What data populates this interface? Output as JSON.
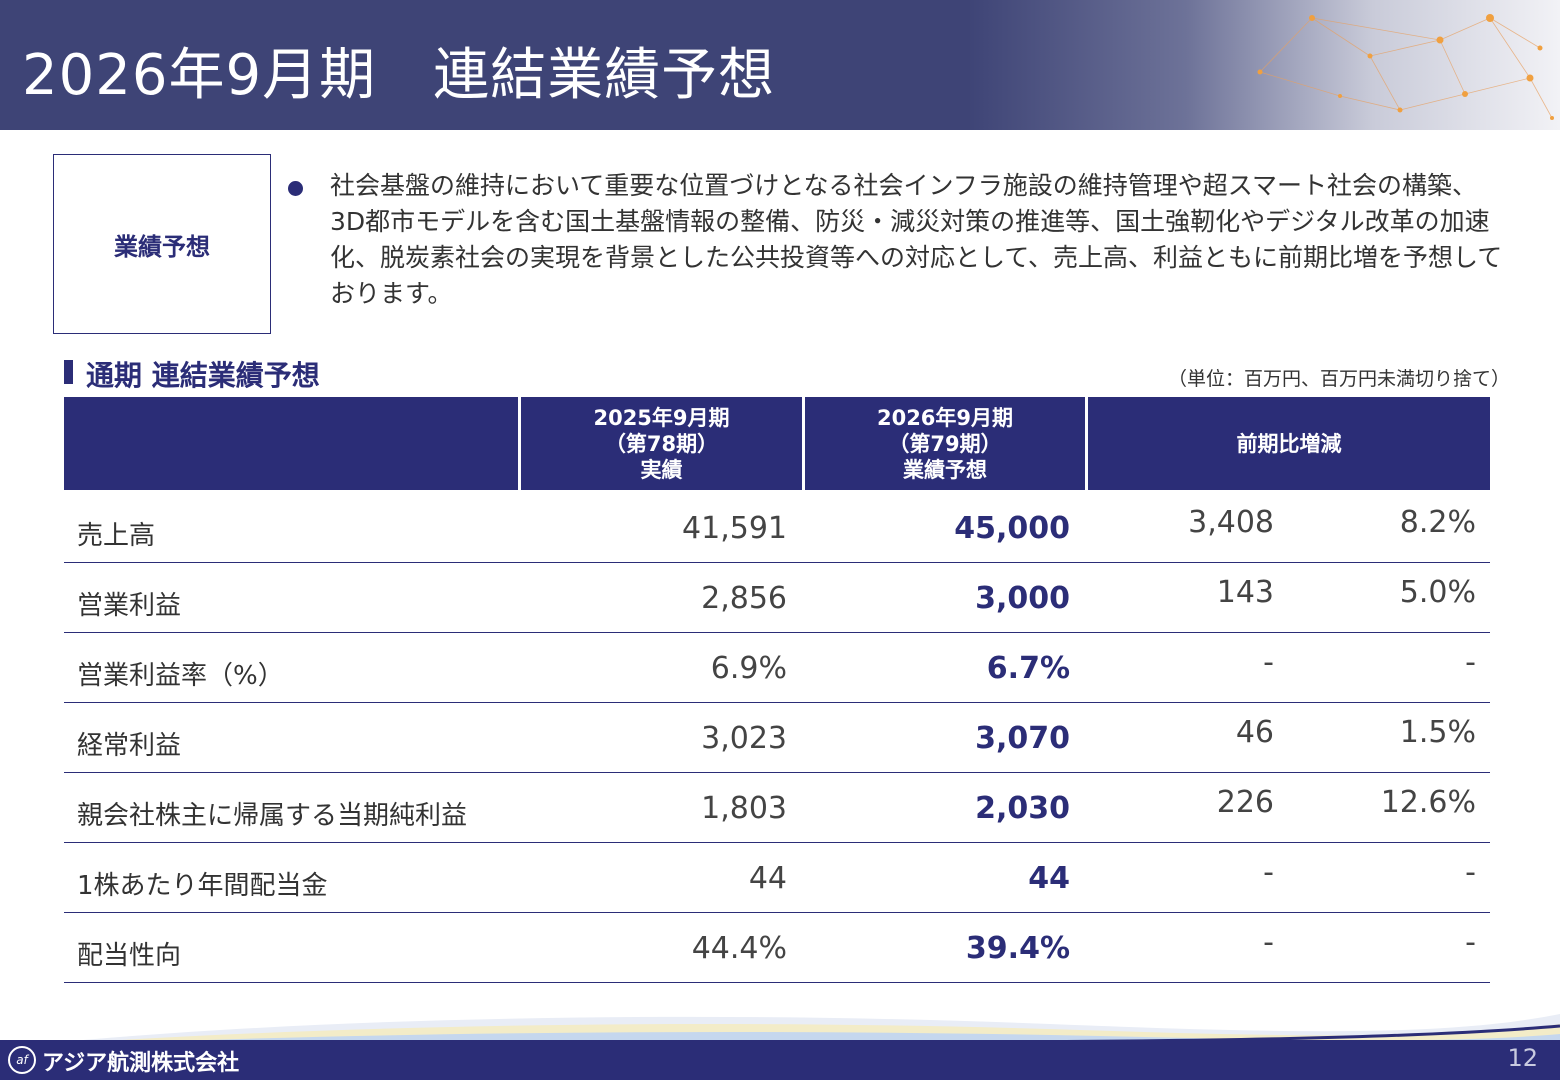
{
  "header": {
    "title": "2026年9月期　連結業績予想"
  },
  "summary": {
    "label": "業績予想",
    "text": "社会基盤の維持において重要な位置づけとなる社会インフラ施設の維持管理や超スマート社会の構築、3D都市モデルを含む国土基盤情報の整備、防災・減災対策の推進等、国土強靭化やデジタル改革の加速化、脱炭素社会の実現を背景とした公共投資等への対応として、売上高、利益ともに前期比増を予想しております。"
  },
  "section": {
    "title": "通期 連結業績予想",
    "unit_note": "（単位：百万円、百万円未満切り捨て）"
  },
  "table": {
    "headers": {
      "actual": [
        "2025年9月期",
        "（第78期）",
        "実績"
      ],
      "forecast": [
        "2026年9月期",
        "（第79期）",
        "業績予想"
      ],
      "change": "前期比増減"
    },
    "rows": [
      {
        "label": "売上高",
        "actual": "41,591",
        "forecast": "45,000",
        "diff": "3,408",
        "rate": "8.2%"
      },
      {
        "label": "営業利益",
        "actual": "2,856",
        "forecast": "3,000",
        "diff": "143",
        "rate": "5.0%"
      },
      {
        "label": "営業利益率（%）",
        "actual": "6.9%",
        "forecast": "6.7%",
        "diff": "-",
        "rate": "-"
      },
      {
        "label": "経常利益",
        "actual": "3,023",
        "forecast": "3,070",
        "diff": "46",
        "rate": "1.5%"
      },
      {
        "label": "親会社株主に帰属する当期純利益",
        "actual": "1,803",
        "forecast": "2,030",
        "diff": "226",
        "rate": "12.6%"
      },
      {
        "label": "1株あたり年間配当金",
        "actual": "44",
        "forecast": "44",
        "diff": "-",
        "rate": "-"
      },
      {
        "label": "配当性向",
        "actual": "44.4%",
        "forecast": "39.4%",
        "diff": "-",
        "rate": "-"
      }
    ]
  },
  "footer": {
    "company": "アジア航測株式会社",
    "page_number": "12"
  },
  "colors": {
    "navy": "#2b2d77",
    "header_bg": "#3e4476",
    "accent_orange": "#f0a040"
  }
}
